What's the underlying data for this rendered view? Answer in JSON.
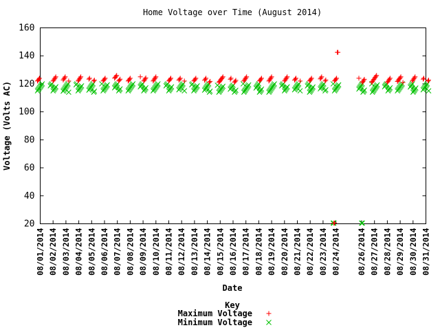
{
  "chart_data": {
    "type": "scatter",
    "title": "Home Voltage over Time (August 2014)",
    "xlabel": "Date",
    "ylabel": "Voltage (Volts AC)",
    "ylim": [
      20,
      160
    ],
    "y_ticks": [
      "20",
      "40",
      "60",
      "80",
      "100",
      "120",
      "140",
      "160"
    ],
    "x_axis": "date",
    "xlim": [
      "08/01/2014",
      "08/31/2014"
    ],
    "x_tick_labels": [
      "08/01/2014",
      "08/02/2014",
      "08/03/2014",
      "08/04/2014",
      "08/05/2014",
      "08/06/2014",
      "08/07/2014",
      "08/08/2014",
      "08/09/2014",
      "08/10/2014",
      "08/11/2014",
      "08/12/2014",
      "08/13/2014",
      "08/14/2014",
      "08/15/2014",
      "08/16/2014",
      "08/17/2014",
      "08/18/2014",
      "08/19/2014",
      "08/20/2014",
      "08/21/2014",
      "08/22/2014",
      "08/23/2014",
      "08/24/2014",
      "08/26/2014",
      "08/27/2014",
      "08/28/2014",
      "08/29/2014",
      "08/30/2014",
      "08/31/2014"
    ],
    "grid": false,
    "legend": {
      "title": "Key",
      "position": "bottom-center"
    },
    "series": [
      {
        "name": "Maximum Voltage",
        "marker": "plus",
        "color": "#ff0000",
        "dates": [
          "08/01/2014",
          "08/02/2014",
          "08/03/2014",
          "08/04/2014",
          "08/05/2014",
          "08/06/2014",
          "08/07/2014",
          "08/08/2014",
          "08/09/2014",
          "08/10/2014",
          "08/11/2014",
          "08/12/2014",
          "08/13/2014",
          "08/14/2014",
          "08/15/2014",
          "08/16/2014",
          "08/17/2014",
          "08/18/2014",
          "08/19/2014",
          "08/20/2014",
          "08/21/2014",
          "08/22/2014",
          "08/23/2014",
          "08/24/2014",
          "08/24/2014",
          "08/24/2014",
          "08/26/2014",
          "08/27/2014",
          "08/28/2014",
          "08/29/2014",
          "08/30/2014",
          "08/31/2014"
        ],
        "low": [
          122,
          122,
          122,
          122,
          122,
          122,
          122,
          122,
          122,
          122,
          122,
          122,
          122,
          121,
          121,
          121,
          122,
          122,
          122,
          122,
          122,
          122,
          122,
          122,
          142.5,
          20.5,
          121,
          121,
          121,
          121,
          122,
          122
        ],
        "high": [
          124,
          125,
          125,
          125,
          124,
          124,
          126,
          124,
          125,
          125,
          124,
          124,
          124,
          124,
          125,
          124,
          125,
          124,
          125,
          125,
          124,
          124,
          125,
          124,
          142.5,
          20.5,
          124,
          126,
          124,
          125,
          125,
          124
        ]
      },
      {
        "name": "Minimum Voltage",
        "marker": "cross",
        "color": "#00c000",
        "dates": [
          "08/01/2014",
          "08/02/2014",
          "08/03/2014",
          "08/04/2014",
          "08/05/2014",
          "08/06/2014",
          "08/07/2014",
          "08/08/2014",
          "08/09/2014",
          "08/10/2014",
          "08/11/2014",
          "08/12/2014",
          "08/13/2014",
          "08/14/2014",
          "08/15/2014",
          "08/16/2014",
          "08/17/2014",
          "08/18/2014",
          "08/19/2014",
          "08/20/2014",
          "08/21/2014",
          "08/22/2014",
          "08/23/2014",
          "08/24/2014",
          "08/26/2014",
          "08/27/2014",
          "08/28/2014",
          "08/29/2014",
          "08/30/2014",
          "08/31/2014"
        ],
        "low": [
          115,
          115,
          114,
          115,
          114,
          115,
          115,
          115,
          115,
          115,
          115,
          115,
          115,
          114,
          114,
          114,
          114,
          114,
          114,
          115,
          115,
          114,
          115,
          115,
          114,
          114,
          115,
          115,
          114,
          115
        ],
        "high": [
          120,
          120,
          120,
          120,
          120,
          120,
          120,
          120,
          120,
          120,
          120,
          120,
          120,
          120,
          119,
          119,
          120,
          120,
          120,
          120,
          120,
          120,
          120,
          120,
          120,
          120,
          120,
          120,
          120,
          120
        ]
      },
      {
        "name": "Minimum Voltage",
        "marker": "cross",
        "color": "#00c000",
        "dates": [
          "08/24/2014",
          "08/26/2014"
        ],
        "low": [
          20.5,
          20.5
        ],
        "high": [
          20.5,
          20.5
        ]
      }
    ]
  }
}
